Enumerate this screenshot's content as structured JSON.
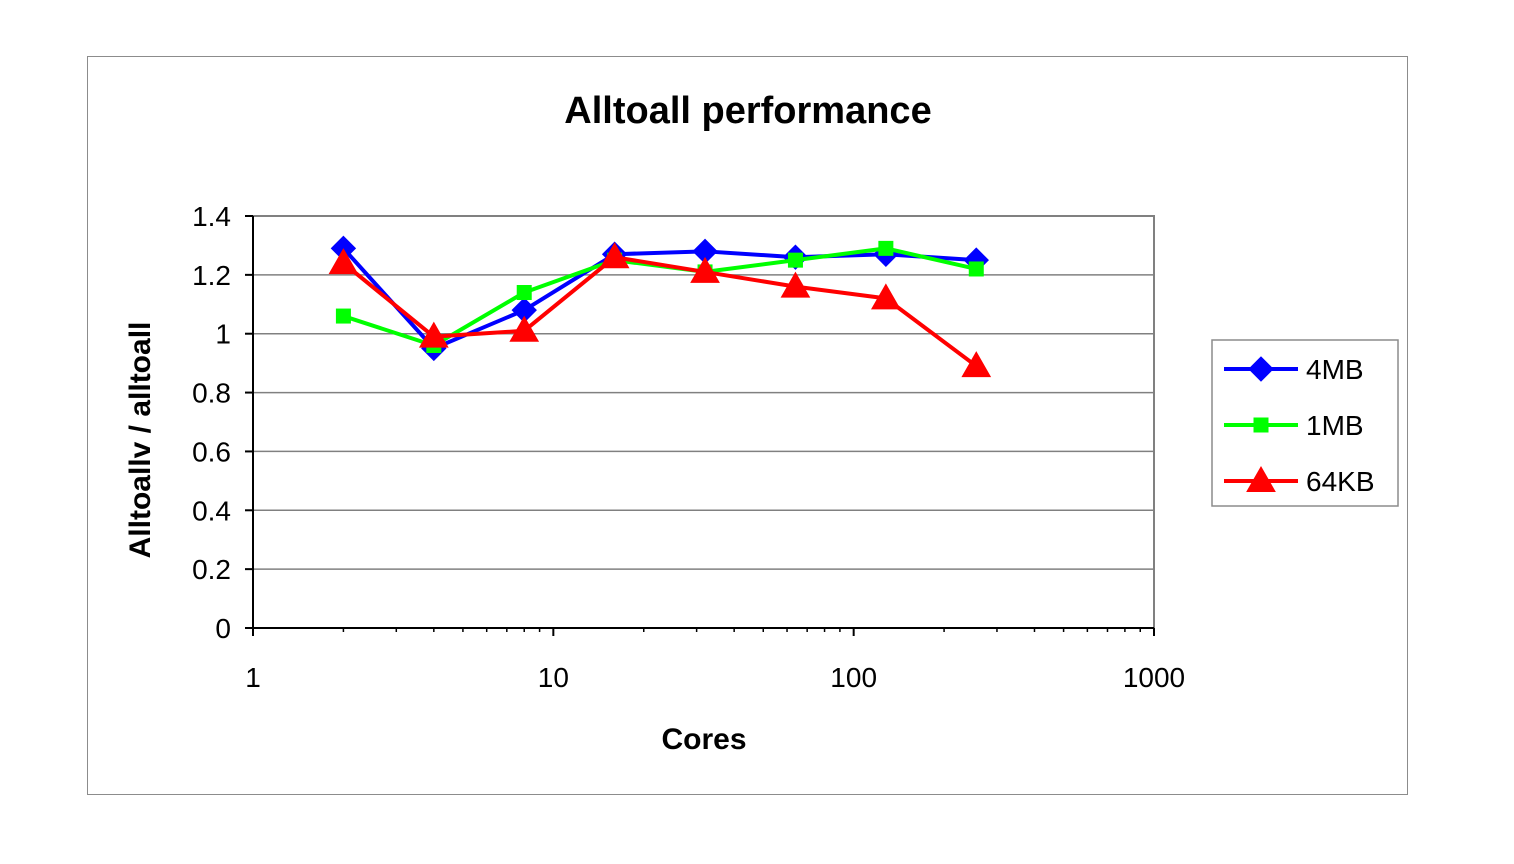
{
  "chart_data": {
    "type": "line",
    "title": "Alltoall performance",
    "xlabel": "Cores",
    "ylabel": "Alltoallv / alltoall",
    "x_scale": "log",
    "xlim": [
      1,
      1000
    ],
    "ylim": [
      0,
      1.4
    ],
    "x_ticks": [
      "1",
      "10",
      "100",
      "1000"
    ],
    "y_ticks": [
      "0",
      "0.2",
      "0.4",
      "0.6",
      "0.8",
      "1",
      "1.2",
      "1.4"
    ],
    "grid": "horizontal",
    "legend_position": "right",
    "x": [
      2,
      4,
      8,
      16,
      32,
      64,
      128,
      256
    ],
    "series": [
      {
        "name": "4MB",
        "color": "#0000ff",
        "marker": "diamond",
        "values": [
          1.29,
          0.95,
          1.08,
          1.27,
          1.28,
          1.26,
          1.27,
          1.25
        ]
      },
      {
        "name": "1MB",
        "color": "#00ff00",
        "marker": "square",
        "values": [
          1.06,
          0.96,
          1.14,
          1.25,
          1.21,
          1.25,
          1.29,
          1.22
        ]
      },
      {
        "name": "64KB",
        "color": "#ff0000",
        "marker": "triangle",
        "values": [
          1.24,
          0.99,
          1.01,
          1.26,
          1.21,
          1.16,
          1.12,
          0.89
        ]
      }
    ]
  }
}
